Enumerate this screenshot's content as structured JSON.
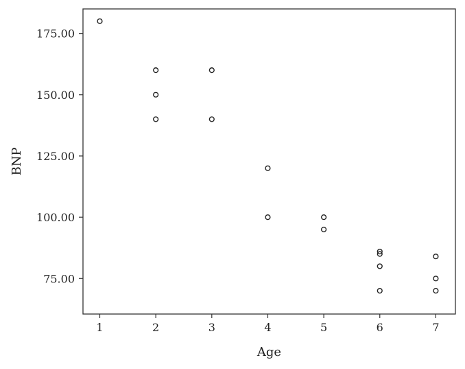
{
  "chart_data": {
    "type": "scatter",
    "title": "",
    "xlabel": "Age",
    "ylabel": "BNP",
    "xlim": [
      0.7,
      7.35
    ],
    "ylim": [
      60.5,
      185
    ],
    "xticks": [
      1,
      2,
      3,
      4,
      5,
      6,
      7
    ],
    "xtick_labels": [
      "1",
      "2",
      "3",
      "4",
      "5",
      "6",
      "7"
    ],
    "yticks": [
      75,
      100,
      125,
      150,
      175
    ],
    "ytick_labels": [
      "75.00",
      "100.00",
      "125.00",
      "150.00",
      "175.00"
    ],
    "grid": false,
    "marker": "open-circle",
    "points": [
      {
        "x": 1,
        "y": 180
      },
      {
        "x": 2,
        "y": 160
      },
      {
        "x": 2,
        "y": 150
      },
      {
        "x": 2,
        "y": 140
      },
      {
        "x": 3,
        "y": 160
      },
      {
        "x": 3,
        "y": 140
      },
      {
        "x": 4,
        "y": 120
      },
      {
        "x": 4,
        "y": 100
      },
      {
        "x": 5,
        "y": 100
      },
      {
        "x": 5,
        "y": 95
      },
      {
        "x": 6,
        "y": 86
      },
      {
        "x": 6,
        "y": 85
      },
      {
        "x": 6,
        "y": 80
      },
      {
        "x": 6,
        "y": 70
      },
      {
        "x": 7,
        "y": 84
      },
      {
        "x": 7,
        "y": 75
      },
      {
        "x": 7,
        "y": 70
      }
    ]
  }
}
